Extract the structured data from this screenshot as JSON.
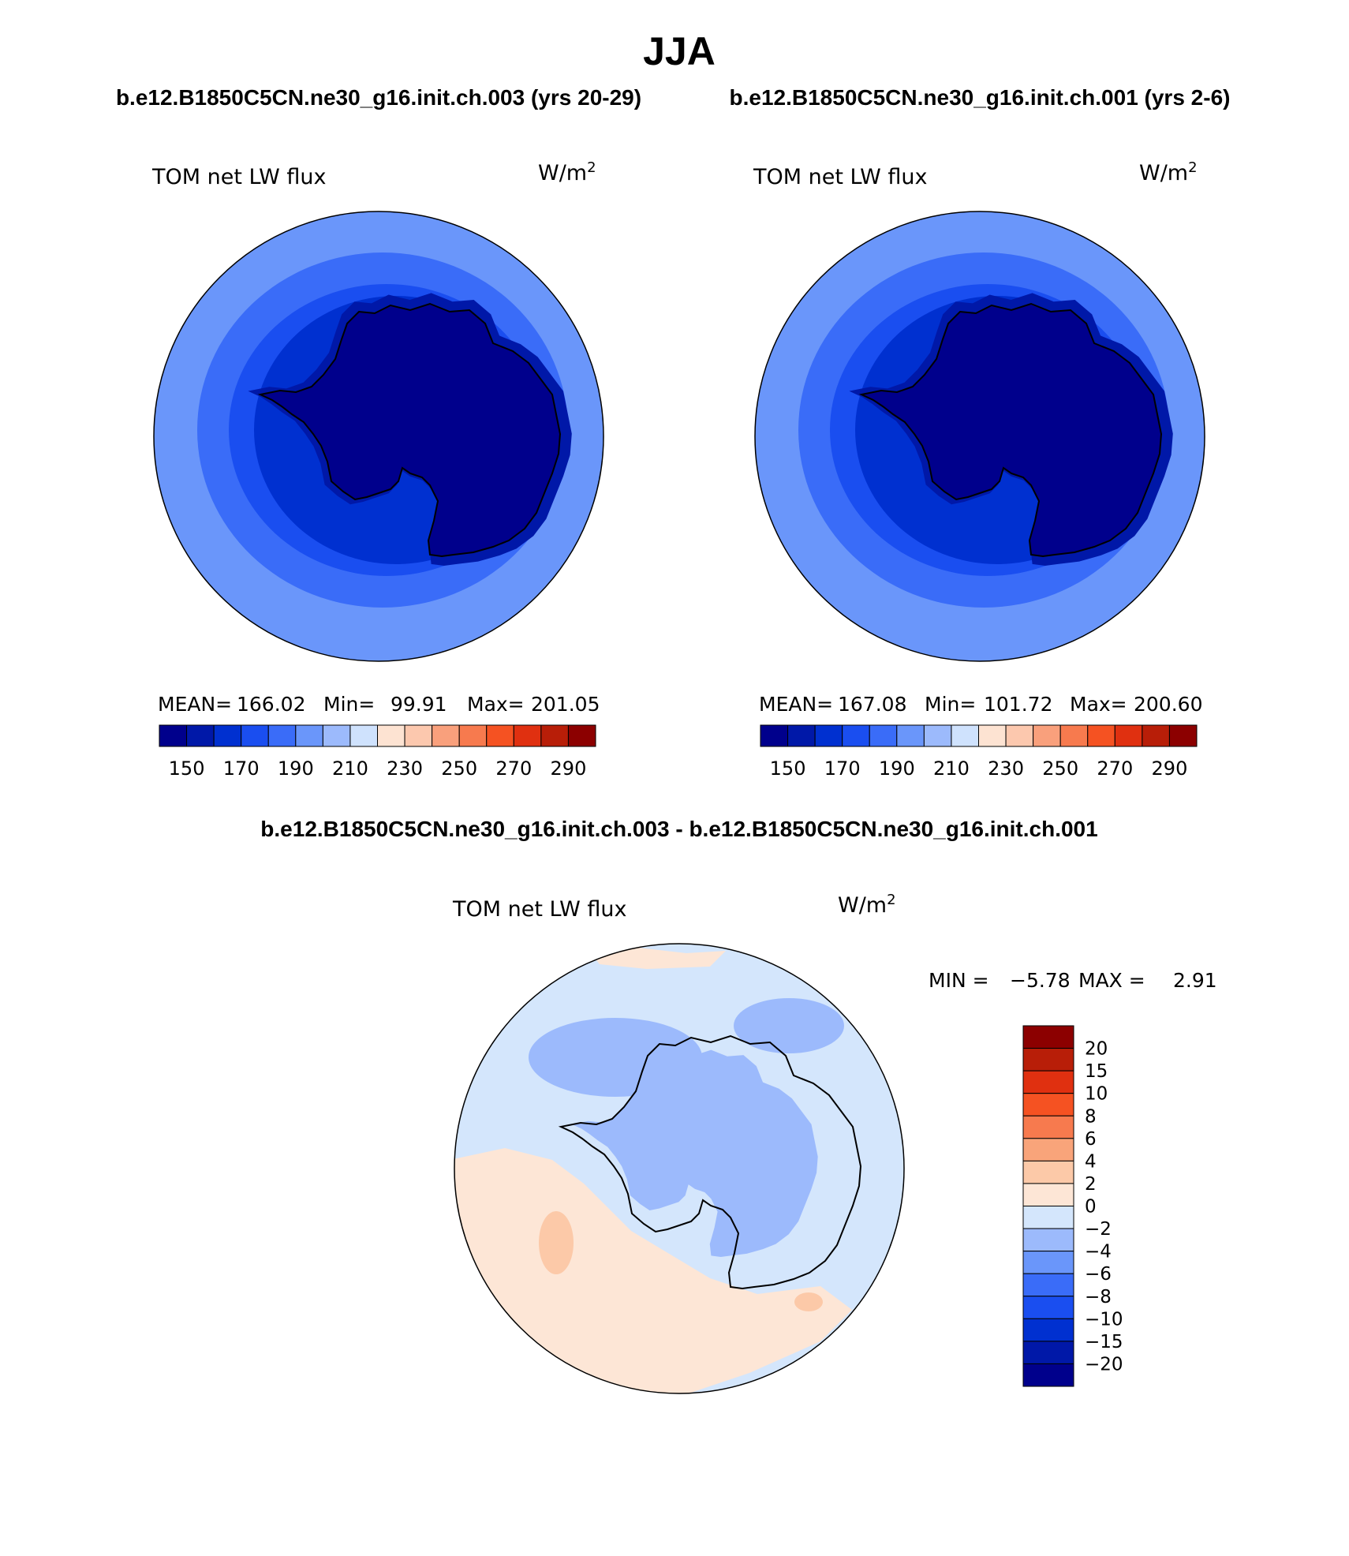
{
  "figure": {
    "season": "JJA",
    "left_title": "b.e12.B1850C5CN.ne30_g16.init.ch.003 (yrs 20-29)",
    "right_title": "b.e12.B1850C5CN.ne30_g16.init.ch.001 (yrs 2-6)",
    "diff_title": "b.e12.B1850C5CN.ne30_g16.init.ch.003 - b.e12.B1850C5CN.ne30_g16.init.ch.001"
  },
  "colors": {
    "absolute_scale": [
      "#00008c",
      "#0018a8",
      "#0030d0",
      "#1a4ef0",
      "#3a6cf8",
      "#6a96fa",
      "#9cbafc",
      "#cfe2fd",
      "#fde3d2",
      "#fcc8ae",
      "#f9a07c",
      "#f77a4e",
      "#f55222",
      "#e03010",
      "#b81e08",
      "#8c0000"
    ],
    "diff_scale": [
      "#00008c",
      "#0018a8",
      "#0030d0",
      "#1a4ef0",
      "#3a6cf8",
      "#6a96fa",
      "#9cbafc",
      "#d4e6fc",
      "#fde6d6",
      "#fcc9a8",
      "#f9a47a",
      "#f77a4e",
      "#f55222",
      "#e03010",
      "#b81e08",
      "#8c0000"
    ]
  },
  "chart_data": [
    {
      "type": "polar-contour-map",
      "panel": "left",
      "variable": "TOM net LW flux",
      "units_base": "W/m",
      "units_exp": "2",
      "stats": {
        "mean_label": "MEAN=",
        "mean": "166.02",
        "min_label": "Min=",
        "min": "99.91",
        "max_label": "Max=",
        "max": "201.05"
      },
      "colorbar_ticks": [
        "150",
        "170",
        "190",
        "210",
        "230",
        "250",
        "270",
        "290"
      ],
      "contour_bands": {
        "land": 0,
        "coast_ring": 1,
        "inner_ocean": 2,
        "mid_ocean": 3,
        "outer_ocean": 4,
        "fringe": 5
      }
    },
    {
      "type": "polar-contour-map",
      "panel": "right",
      "variable": "TOM net LW flux",
      "units_base": "W/m",
      "units_exp": "2",
      "stats": {
        "mean_label": "MEAN=",
        "mean": "167.08",
        "min_label": "Min=",
        "min": "101.72",
        "max_label": "Max=",
        "max": "200.60"
      },
      "colorbar_ticks": [
        "150",
        "170",
        "190",
        "210",
        "230",
        "250",
        "270",
        "290"
      ],
      "contour_bands": {
        "land": 0,
        "coast_ring": 1,
        "inner_ocean": 2,
        "mid_ocean": 3,
        "outer_ocean": 4,
        "fringe": 5
      }
    },
    {
      "type": "polar-contour-map",
      "panel": "difference",
      "variable": "TOM net LW flux",
      "units_base": "W/m",
      "units_exp": "2",
      "stats": {
        "min_label": "MIN =",
        "min": "−5.78",
        "max_label": "MAX =",
        "max": "2.91"
      },
      "colorbar_ticks": [
        "20",
        "15",
        "10",
        "8",
        "6",
        "4",
        "2",
        "0",
        "−2",
        "−4",
        "−6",
        "−8",
        "−10",
        "−15",
        "−20"
      ],
      "colorbar_orientation": "vertical"
    }
  ]
}
